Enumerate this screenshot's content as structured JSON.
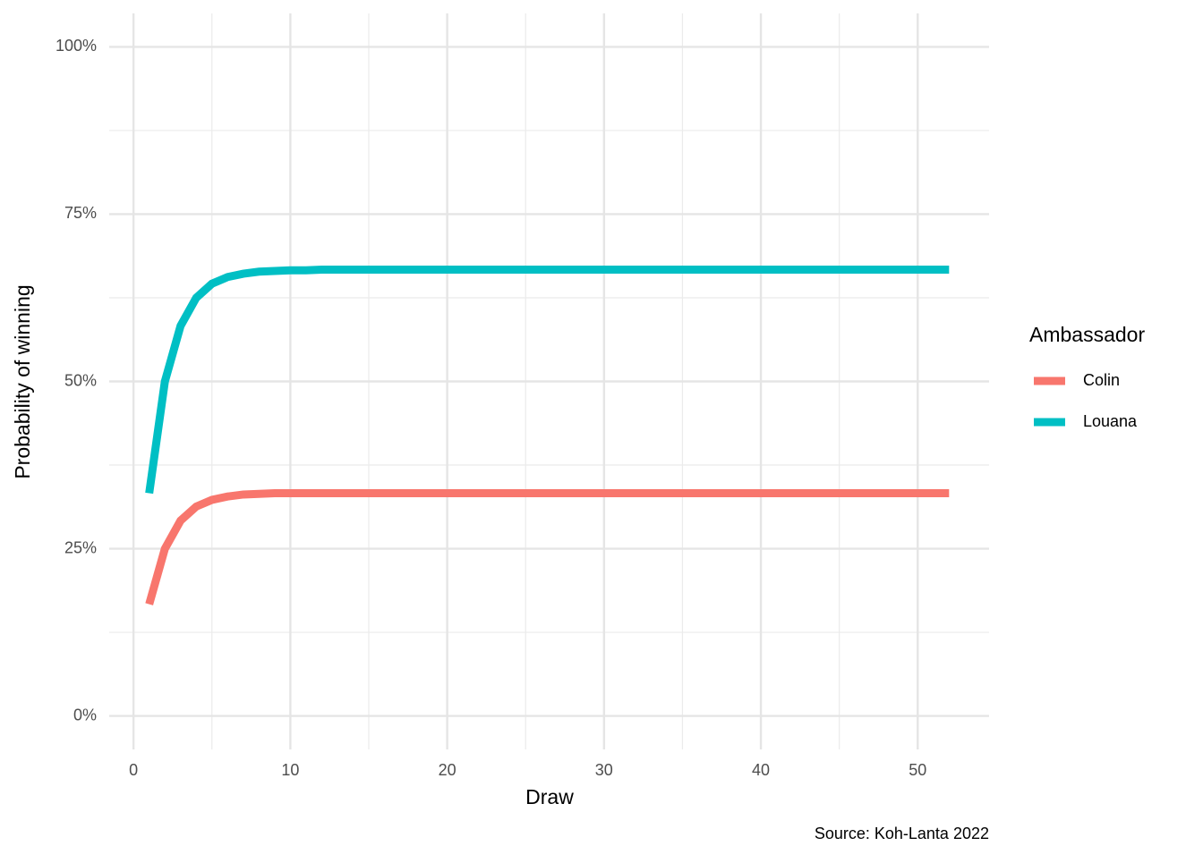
{
  "chart_data": {
    "type": "line",
    "x_label": "Draw",
    "y_label": "Probability of winning",
    "caption": "Source: Koh-Lanta 2022",
    "legend_title": "Ambassador",
    "legend_position": "right",
    "x": [
      1,
      2,
      3,
      4,
      5,
      6,
      7,
      8,
      9,
      10,
      11,
      12,
      13,
      14,
      15,
      16,
      17,
      18,
      19,
      20,
      21,
      22,
      23,
      24,
      25,
      26,
      27,
      28,
      29,
      30,
      31,
      32,
      33,
      34,
      35,
      36,
      37,
      38,
      39,
      40,
      41,
      42,
      43,
      44,
      45,
      46,
      47,
      48,
      49,
      50,
      51,
      52
    ],
    "series": [
      {
        "name": "Colin",
        "color": "#F8766D",
        "values": [
          16.7,
          25,
          29.2,
          31.3,
          32.3,
          32.8,
          33.1,
          33.2,
          33.3,
          33.3,
          33.3,
          33.3,
          33.3,
          33.3,
          33.3,
          33.3,
          33.3,
          33.3,
          33.3,
          33.3,
          33.3,
          33.3,
          33.3,
          33.3,
          33.3,
          33.3,
          33.3,
          33.3,
          33.3,
          33.3,
          33.3,
          33.3,
          33.3,
          33.3,
          33.3,
          33.3,
          33.3,
          33.3,
          33.3,
          33.3,
          33.3,
          33.3,
          33.3,
          33.3,
          33.3,
          33.3,
          33.3,
          33.3,
          33.3,
          33.3,
          33.3,
          33.3
        ]
      },
      {
        "name": "Louana",
        "color": "#00BFC4",
        "values": [
          33.3,
          50,
          58.3,
          62.5,
          64.6,
          65.6,
          66.1,
          66.4,
          66.5,
          66.6,
          66.6,
          66.7,
          66.7,
          66.7,
          66.7,
          66.7,
          66.7,
          66.7,
          66.7,
          66.7,
          66.7,
          66.7,
          66.7,
          66.7,
          66.7,
          66.7,
          66.7,
          66.7,
          66.7,
          66.7,
          66.7,
          66.7,
          66.7,
          66.7,
          66.7,
          66.7,
          66.7,
          66.7,
          66.7,
          66.7,
          66.7,
          66.7,
          66.7,
          66.7,
          66.7,
          66.7,
          66.7,
          66.7,
          66.7,
          66.7,
          66.7,
          66.7
        ]
      }
    ],
    "xlim": [
      -1.55,
      54.55
    ],
    "xticks": [
      0,
      10,
      20,
      30,
      40,
      50
    ],
    "xminor": [
      5,
      15,
      25,
      35,
      45
    ],
    "ylim": [
      -5,
      105
    ],
    "yticks": [
      {
        "value": 0,
        "label": "0%"
      },
      {
        "value": 25,
        "label": "25%"
      },
      {
        "value": 50,
        "label": "50%"
      },
      {
        "value": 75,
        "label": "75%"
      },
      {
        "value": 100,
        "label": "100%"
      }
    ],
    "yminor": [
      12.5,
      37.5,
      62.5,
      87.5
    ],
    "grid": true
  }
}
